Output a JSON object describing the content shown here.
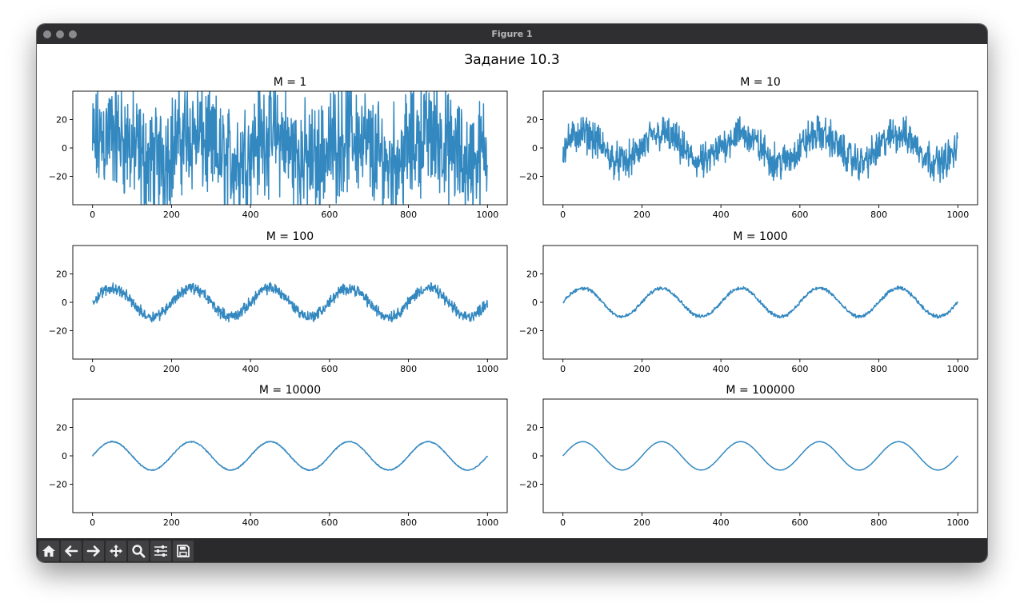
{
  "window": {
    "title": "Figure 1"
  },
  "toolbar": {
    "buttons": [
      {
        "name": "home-button",
        "icon": "home-icon"
      },
      {
        "name": "back-button",
        "icon": "arrow-left-icon"
      },
      {
        "name": "forward-button",
        "icon": "arrow-right-icon"
      },
      {
        "name": "pan-button",
        "icon": "move-icon"
      },
      {
        "name": "zoom-button",
        "icon": "magnifier-icon"
      },
      {
        "name": "configure-subplots-button",
        "icon": "sliders-icon"
      },
      {
        "name": "save-button",
        "icon": "floppy-disk-icon"
      }
    ]
  },
  "figure": {
    "title": "Задание 10.3",
    "line_color": "#3388c0"
  },
  "chart_data": [
    {
      "type": "line",
      "title": "M = 1",
      "M": 1,
      "x_range": [
        0,
        1000
      ],
      "xlim": [
        -50,
        1050
      ],
      "ylim": [
        -40,
        40
      ],
      "xticks": [
        0,
        200,
        400,
        600,
        800,
        1000
      ],
      "yticks": [
        20,
        0,
        -20
      ],
      "signal": {
        "function": "sine",
        "amplitude": 10,
        "period": 200
      },
      "noise_amplitude": 35,
      "grid": false
    },
    {
      "type": "line",
      "title": "M = 10",
      "M": 10,
      "x_range": [
        0,
        1000
      ],
      "xlim": [
        -50,
        1050
      ],
      "ylim": [
        -40,
        40
      ],
      "xticks": [
        0,
        200,
        400,
        600,
        800,
        1000
      ],
      "yticks": [
        20,
        0,
        -20
      ],
      "signal": {
        "function": "sine",
        "amplitude": 10,
        "period": 200
      },
      "noise_amplitude": 11,
      "grid": false
    },
    {
      "type": "line",
      "title": "M = 100",
      "M": 100,
      "x_range": [
        0,
        1000
      ],
      "xlim": [
        -50,
        1050
      ],
      "ylim": [
        -40,
        40
      ],
      "xticks": [
        0,
        200,
        400,
        600,
        800,
        1000
      ],
      "yticks": [
        20,
        0,
        -20
      ],
      "signal": {
        "function": "sine",
        "amplitude": 10,
        "period": 200
      },
      "noise_amplitude": 3.5,
      "grid": false
    },
    {
      "type": "line",
      "title": "M = 1000",
      "M": 1000,
      "x_range": [
        0,
        1000
      ],
      "xlim": [
        -50,
        1050
      ],
      "ylim": [
        -40,
        40
      ],
      "xticks": [
        0,
        200,
        400,
        600,
        800,
        1000
      ],
      "yticks": [
        20,
        0,
        -20
      ],
      "signal": {
        "function": "sine",
        "amplitude": 10,
        "period": 200
      },
      "noise_amplitude": 1.1,
      "grid": false
    },
    {
      "type": "line",
      "title": "M = 10000",
      "M": 10000,
      "x_range": [
        0,
        1000
      ],
      "xlim": [
        -50,
        1050
      ],
      "ylim": [
        -40,
        40
      ],
      "xticks": [
        0,
        200,
        400,
        600,
        800,
        1000
      ],
      "yticks": [
        20,
        0,
        -20
      ],
      "signal": {
        "function": "sine",
        "amplitude": 10,
        "period": 200
      },
      "noise_amplitude": 0.35,
      "grid": false
    },
    {
      "type": "line",
      "title": "M = 100000",
      "M": 100000,
      "x_range": [
        0,
        1000
      ],
      "xlim": [
        -50,
        1050
      ],
      "ylim": [
        -40,
        40
      ],
      "xticks": [
        0,
        200,
        400,
        600,
        800,
        1000
      ],
      "yticks": [
        20,
        0,
        -20
      ],
      "signal": {
        "function": "sine",
        "amplitude": 10,
        "period": 200
      },
      "noise_amplitude": 0.11,
      "grid": false
    }
  ]
}
